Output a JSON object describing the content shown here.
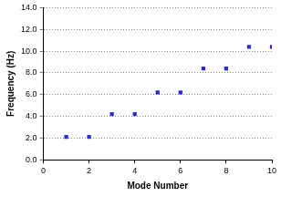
{
  "chart_data": {
    "type": "scatter",
    "x_label": "Mode Number",
    "y_label": "Frequency (Hz)",
    "x": [
      1,
      2,
      3,
      4,
      5,
      6,
      7,
      8,
      9,
      10
    ],
    "values": [
      2.1,
      2.1,
      4.2,
      4.2,
      6.2,
      6.2,
      8.4,
      8.4,
      10.4,
      10.4
    ],
    "color": "#2b2bd0",
    "marker": "square",
    "xlim": [
      0,
      10
    ],
    "xticks": [
      0,
      2,
      4,
      6,
      8,
      10
    ],
    "ylim": [
      0,
      14
    ],
    "yticks": [
      {
        "value": 0,
        "label": "0.0"
      },
      {
        "value": 2,
        "label": "2.0"
      },
      {
        "value": 4,
        "label": "4.0"
      },
      {
        "value": 6,
        "label": "6.0"
      },
      {
        "value": 8,
        "label": "8.0"
      },
      {
        "value": 10,
        "label": "10.0"
      },
      {
        "value": 12,
        "label": "12.0"
      },
      {
        "value": 14,
        "label": "14.0"
      }
    ],
    "grid": true
  }
}
